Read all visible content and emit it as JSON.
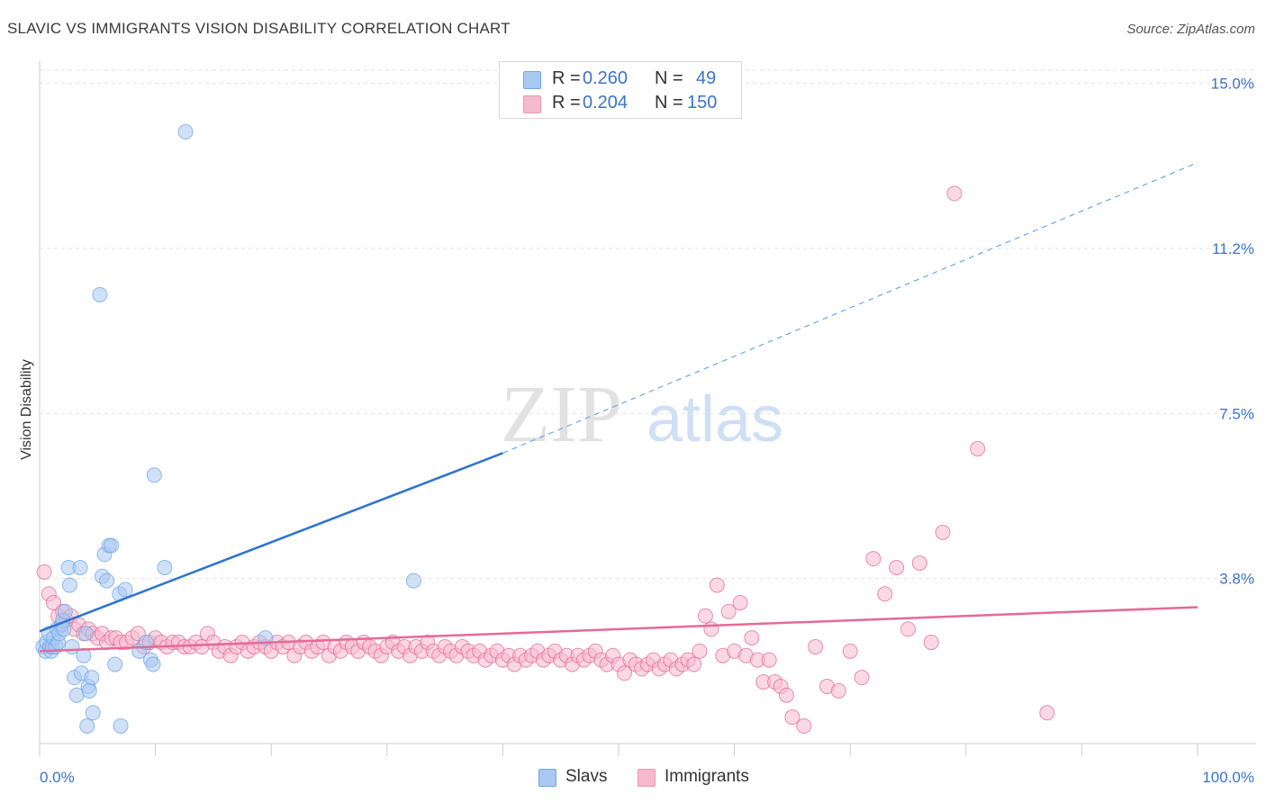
{
  "title": "SLAVIC VS IMMIGRANTS VISION DISABILITY CORRELATION CHART",
  "source": "Source: ZipAtlas.com",
  "watermark": {
    "zip": "ZIP",
    "atlas": "atlas"
  },
  "legend": {
    "rows": [
      {
        "r_label": "R =",
        "r_value": "0.260",
        "n_label": "N =",
        "n_value": "49",
        "color": "#a9c9f0"
      },
      {
        "r_label": "R =",
        "r_value": "0.204",
        "n_label": "N =",
        "n_value": "150",
        "color": "#f6b9cd"
      }
    ]
  },
  "bottom_legend": [
    {
      "label": "Slavs",
      "color": "#a9c9f0"
    },
    {
      "label": "Immigrants",
      "color": "#f6b9cd"
    }
  ],
  "chart_data": {
    "type": "scatter",
    "title": "SLAVIC VS IMMIGRANTS VISION DISABILITY CORRELATION CHART",
    "ylabel": "Vision Disability",
    "xlabel": "",
    "x_tick_labels": [
      "0.0%",
      "100.0%"
    ],
    "y_tick_labels": [
      "15.0%",
      "11.2%",
      "7.5%",
      "3.8%"
    ],
    "y_ticks": [
      15.0,
      11.25,
      7.5,
      3.75
    ],
    "xlim": [
      0,
      100
    ],
    "ylim": [
      0,
      15.3
    ],
    "grid": "horizontal dashed",
    "legend_position": "top-center",
    "series": [
      {
        "name": "Slavs",
        "color": "#6ea6e8",
        "fill": "#a9c9f0",
        "points": [
          [
            0.3,
            2.2
          ],
          [
            0.5,
            2.1
          ],
          [
            0.6,
            2.3
          ],
          [
            0.8,
            2.5
          ],
          [
            0.9,
            2.2
          ],
          [
            1.0,
            2.1
          ],
          [
            1.1,
            2.2
          ],
          [
            1.2,
            2.4
          ],
          [
            1.4,
            2.2
          ],
          [
            1.5,
            2.6
          ],
          [
            1.6,
            2.3
          ],
          [
            1.7,
            2.5
          ],
          [
            1.9,
            2.7
          ],
          [
            2.0,
            2.8
          ],
          [
            2.1,
            2.6
          ],
          [
            2.2,
            3.0
          ],
          [
            2.5,
            4.0
          ],
          [
            2.6,
            3.6
          ],
          [
            2.8,
            2.2
          ],
          [
            3.0,
            1.5
          ],
          [
            3.2,
            1.1
          ],
          [
            3.5,
            4.0
          ],
          [
            3.6,
            1.6
          ],
          [
            3.8,
            2.0
          ],
          [
            4.0,
            2.5
          ],
          [
            4.1,
            0.4
          ],
          [
            4.2,
            1.3
          ],
          [
            4.3,
            1.2
          ],
          [
            4.5,
            1.5
          ],
          [
            4.6,
            0.7
          ],
          [
            5.2,
            10.2
          ],
          [
            5.4,
            3.8
          ],
          [
            5.6,
            4.3
          ],
          [
            5.8,
            3.7
          ],
          [
            6.0,
            4.5
          ],
          [
            6.2,
            4.5
          ],
          [
            6.5,
            1.8
          ],
          [
            6.9,
            3.4
          ],
          [
            7.0,
            0.4
          ],
          [
            7.4,
            3.5
          ],
          [
            8.6,
            2.1
          ],
          [
            9.2,
            2.3
          ],
          [
            9.6,
            1.9
          ],
          [
            9.8,
            1.8
          ],
          [
            9.9,
            6.1
          ],
          [
            10.8,
            4.0
          ],
          [
            12.6,
            13.9
          ],
          [
            19.5,
            2.4
          ],
          [
            32.3,
            3.7
          ]
        ],
        "trend": {
          "x0": 0,
          "y0": 2.55,
          "x1": 40,
          "y1": 6.6,
          "dash_to_x": 100,
          "dash_to_y": 13.2
        }
      },
      {
        "name": "Immigrants",
        "color": "#e46a97",
        "fill": "#f6b9cd",
        "points": [
          [
            0.4,
            3.9
          ],
          [
            0.8,
            3.4
          ],
          [
            1.2,
            3.2
          ],
          [
            1.6,
            2.9
          ],
          [
            2.0,
            3.0
          ],
          [
            2.3,
            2.8
          ],
          [
            2.7,
            2.9
          ],
          [
            3.0,
            2.6
          ],
          [
            3.4,
            2.7
          ],
          [
            3.8,
            2.5
          ],
          [
            4.2,
            2.6
          ],
          [
            4.6,
            2.5
          ],
          [
            5.0,
            2.4
          ],
          [
            5.4,
            2.5
          ],
          [
            5.8,
            2.3
          ],
          [
            6.2,
            2.4
          ],
          [
            6.6,
            2.4
          ],
          [
            7.0,
            2.3
          ],
          [
            7.5,
            2.3
          ],
          [
            8.0,
            2.4
          ],
          [
            8.5,
            2.5
          ],
          [
            9.0,
            2.2
          ],
          [
            9.5,
            2.3
          ],
          [
            10.0,
            2.4
          ],
          [
            10.5,
            2.3
          ],
          [
            11.0,
            2.2
          ],
          [
            11.5,
            2.3
          ],
          [
            12.0,
            2.3
          ],
          [
            12.5,
            2.2
          ],
          [
            13.0,
            2.2
          ],
          [
            13.5,
            2.3
          ],
          [
            14.0,
            2.2
          ],
          [
            14.5,
            2.5
          ],
          [
            15.0,
            2.3
          ],
          [
            15.5,
            2.1
          ],
          [
            16.0,
            2.2
          ],
          [
            16.5,
            2.0
          ],
          [
            17.0,
            2.2
          ],
          [
            17.5,
            2.3
          ],
          [
            18.0,
            2.1
          ],
          [
            18.5,
            2.2
          ],
          [
            19.0,
            2.3
          ],
          [
            19.5,
            2.2
          ],
          [
            20.0,
            2.1
          ],
          [
            20.5,
            2.3
          ],
          [
            21.0,
            2.2
          ],
          [
            21.5,
            2.3
          ],
          [
            22.0,
            2.0
          ],
          [
            22.5,
            2.2
          ],
          [
            23.0,
            2.3
          ],
          [
            23.5,
            2.1
          ],
          [
            24.0,
            2.2
          ],
          [
            24.5,
            2.3
          ],
          [
            25.0,
            2.0
          ],
          [
            25.5,
            2.2
          ],
          [
            26.0,
            2.1
          ],
          [
            26.5,
            2.3
          ],
          [
            27.0,
            2.2
          ],
          [
            27.5,
            2.1
          ],
          [
            28.0,
            2.3
          ],
          [
            28.5,
            2.2
          ],
          [
            29.0,
            2.1
          ],
          [
            29.5,
            2.0
          ],
          [
            30.0,
            2.2
          ],
          [
            30.5,
            2.3
          ],
          [
            31.0,
            2.1
          ],
          [
            31.5,
            2.2
          ],
          [
            32.0,
            2.0
          ],
          [
            32.5,
            2.2
          ],
          [
            33.0,
            2.1
          ],
          [
            33.5,
            2.3
          ],
          [
            34.0,
            2.1
          ],
          [
            34.5,
            2.0
          ],
          [
            35.0,
            2.2
          ],
          [
            35.5,
            2.1
          ],
          [
            36.0,
            2.0
          ],
          [
            36.5,
            2.2
          ],
          [
            37.0,
            2.1
          ],
          [
            37.5,
            2.0
          ],
          [
            38.0,
            2.1
          ],
          [
            38.5,
            1.9
          ],
          [
            39.0,
            2.0
          ],
          [
            39.5,
            2.1
          ],
          [
            40.0,
            1.9
          ],
          [
            40.5,
            2.0
          ],
          [
            41.0,
            1.8
          ],
          [
            41.5,
            2.0
          ],
          [
            42.0,
            1.9
          ],
          [
            42.5,
            2.0
          ],
          [
            43.0,
            2.1
          ],
          [
            43.5,
            1.9
          ],
          [
            44.0,
            2.0
          ],
          [
            44.5,
            2.1
          ],
          [
            45.0,
            1.9
          ],
          [
            45.5,
            2.0
          ],
          [
            46.0,
            1.8
          ],
          [
            46.5,
            2.0
          ],
          [
            47.0,
            1.9
          ],
          [
            47.5,
            2.0
          ],
          [
            48.0,
            2.1
          ],
          [
            48.5,
            1.9
          ],
          [
            49.0,
            1.8
          ],
          [
            49.5,
            2.0
          ],
          [
            50.0,
            1.8
          ],
          [
            50.5,
            1.6
          ],
          [
            51.0,
            1.9
          ],
          [
            51.5,
            1.8
          ],
          [
            52.0,
            1.7
          ],
          [
            52.5,
            1.8
          ],
          [
            53.0,
            1.9
          ],
          [
            53.5,
            1.7
          ],
          [
            54.0,
            1.8
          ],
          [
            54.5,
            1.9
          ],
          [
            55.0,
            1.7
          ],
          [
            55.5,
            1.8
          ],
          [
            56.0,
            1.9
          ],
          [
            56.5,
            1.8
          ],
          [
            57.0,
            2.1
          ],
          [
            57.5,
            2.9
          ],
          [
            58.0,
            2.6
          ],
          [
            58.5,
            3.6
          ],
          [
            59.0,
            2.0
          ],
          [
            59.5,
            3.0
          ],
          [
            60.0,
            2.1
          ],
          [
            60.5,
            3.2
          ],
          [
            61.0,
            2.0
          ],
          [
            61.5,
            2.4
          ],
          [
            62.0,
            1.9
          ],
          [
            62.5,
            1.4
          ],
          [
            63.0,
            1.9
          ],
          [
            63.5,
            1.4
          ],
          [
            64.0,
            1.3
          ],
          [
            64.5,
            1.1
          ],
          [
            65.0,
            0.6
          ],
          [
            66.0,
            0.4
          ],
          [
            67.0,
            2.2
          ],
          [
            68.0,
            1.3
          ],
          [
            69.0,
            1.2
          ],
          [
            70.0,
            2.1
          ],
          [
            71.0,
            1.5
          ],
          [
            72.0,
            4.2
          ],
          [
            73.0,
            3.4
          ],
          [
            74.0,
            4.0
          ],
          [
            75.0,
            2.6
          ],
          [
            76.0,
            4.1
          ],
          [
            77.0,
            2.3
          ],
          [
            78.0,
            4.8
          ],
          [
            79.0,
            12.5
          ],
          [
            81.0,
            6.7
          ],
          [
            87.0,
            0.7
          ]
        ],
        "trend": {
          "x0": 0,
          "y0": 2.1,
          "x1": 100,
          "y1": 3.1
        }
      }
    ]
  }
}
